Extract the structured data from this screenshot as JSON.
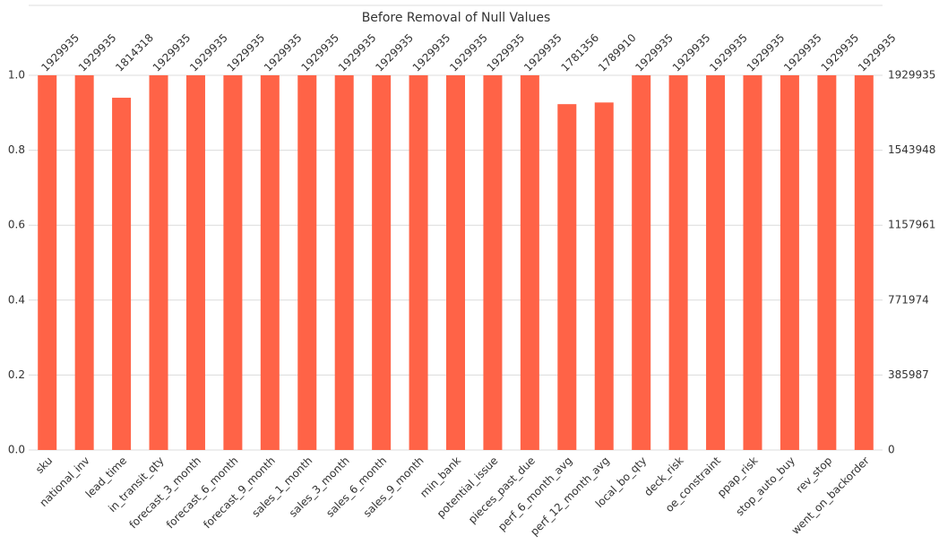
{
  "chart_data": {
    "type": "bar",
    "title": "Before Removal of Null Values",
    "categories": [
      "sku",
      "national_inv",
      "lead_time",
      "in_transit_qty",
      "forecast_3_month",
      "forecast_6_month",
      "forecast_9_month",
      "sales_1_month",
      "sales_3_month",
      "sales_6_month",
      "sales_9_month",
      "min_bank",
      "potential_issue",
      "pieces_past_due",
      "perf_6_month_avg",
      "perf_12_month_avg",
      "local_bo_qty",
      "deck_risk",
      "oe_constraint",
      "ppap_risk",
      "stop_auto_buy",
      "rev_stop",
      "went_on_backorder"
    ],
    "series": [
      {
        "name": null,
        "color": "#ff6347",
        "axis": "y2",
        "values": [
          1929935,
          1929935,
          1814318,
          1929935,
          1929935,
          1929935,
          1929935,
          1929935,
          1929935,
          1929935,
          1929935,
          1929935,
          1929935,
          1929935,
          1781356,
          1789910,
          1929935,
          1929935,
          1929935,
          1929935,
          1929935,
          1929935,
          1929935
        ]
      }
    ],
    "ylim": [
      0,
      1
    ],
    "yticks": [
      {
        "value": 0,
        "label": "0.0"
      },
      {
        "value": 0.2,
        "label": "0.2"
      },
      {
        "value": 0.4,
        "label": "0.4"
      },
      {
        "value": 0.6,
        "label": "0.6"
      },
      {
        "value": 0.8,
        "label": "0.8"
      },
      {
        "value": 1,
        "label": "1.0"
      }
    ],
    "y2lim": [
      0,
      1929935
    ],
    "y2ticks": [
      0,
      385987,
      771974,
      1157961,
      1543948,
      1929935
    ],
    "grid": true
  }
}
